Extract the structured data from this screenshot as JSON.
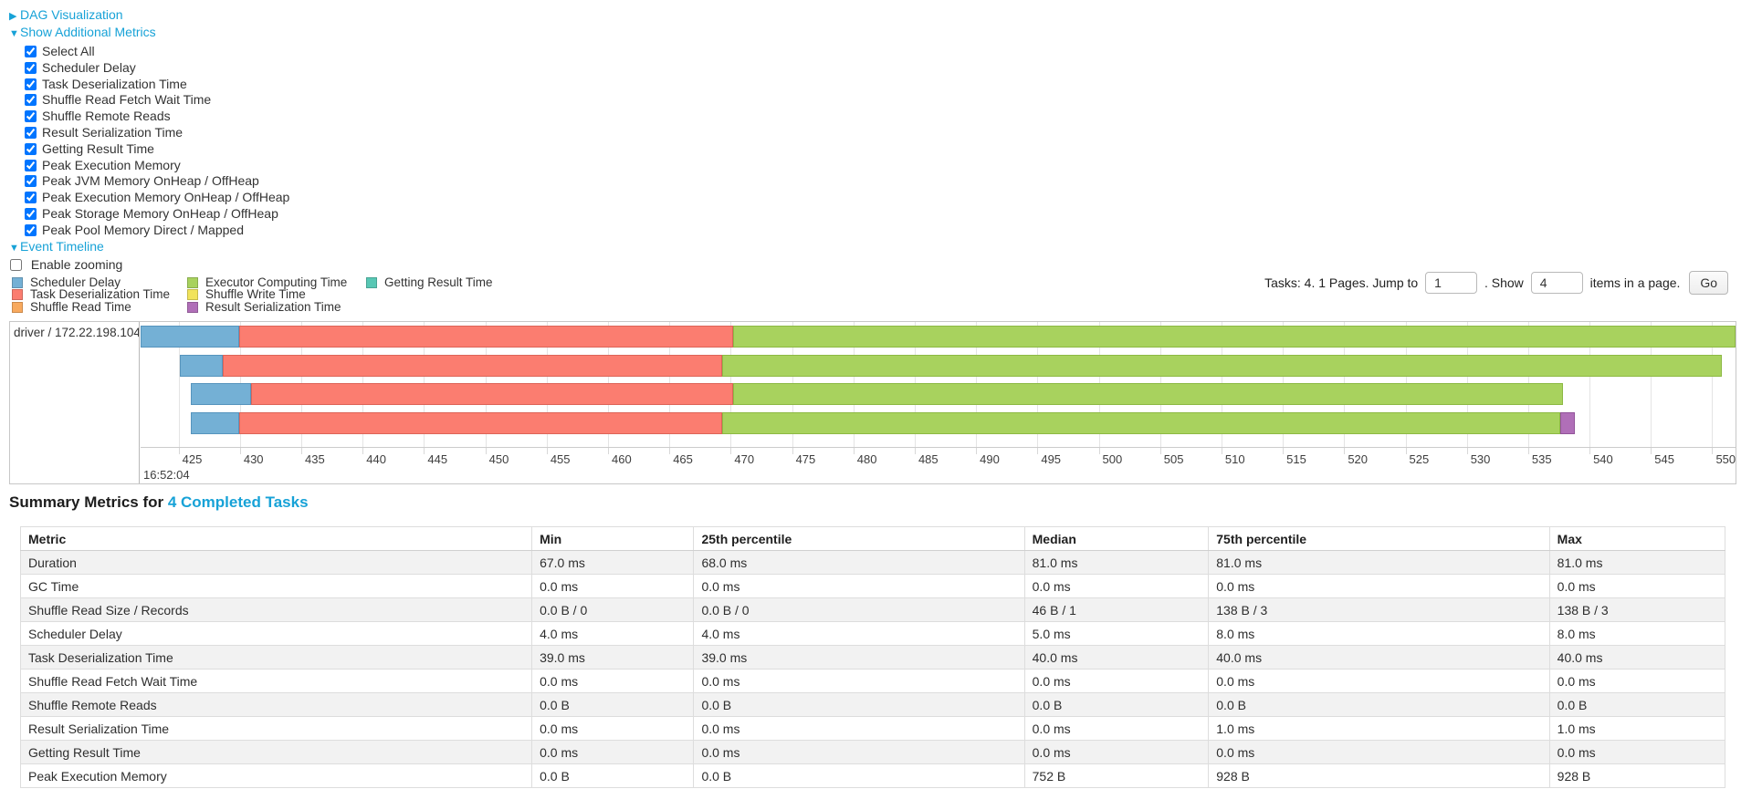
{
  "palette": {
    "link_color": "#17a2d7",
    "grid_color": "#e4e4e4",
    "series": {
      "scheduler_delay": {
        "label": "Scheduler Delay",
        "fill": "#74b0d5",
        "border": "#5694bd"
      },
      "task_deserialization_time": {
        "label": "Task Deserialization Time",
        "fill": "#fb7d70",
        "border": "#dd6458"
      },
      "shuffle_read_time": {
        "label": "Shuffle Read Time",
        "fill": "#f8a95e",
        "border": "#d98c43"
      },
      "executor_computing_time": {
        "label": "Executor Computing Time",
        "fill": "#a8d25e",
        "border": "#8db944"
      },
      "shuffle_write_time": {
        "label": "Shuffle Write Time",
        "fill": "#f1e35b",
        "border": "#d3c443"
      },
      "result_serialization_time": {
        "label": "Result Serialization Time",
        "fill": "#b06fb8",
        "border": "#92539a"
      },
      "getting_result_time": {
        "label": "Getting Result Time",
        "fill": "#58c7b4",
        "border": "#3fa894"
      }
    }
  },
  "controls": {
    "dag_toggle": {
      "arrow": "▶",
      "label": "DAG Visualization"
    },
    "metrics_toggle": {
      "arrow": "▼",
      "label": "Show Additional Metrics"
    },
    "additional_metrics": {
      "items": [
        "Select All",
        "Scheduler Delay",
        "Task Deserialization Time",
        "Shuffle Read Fetch Wait Time",
        "Shuffle Remote Reads",
        "Result Serialization Time",
        "Getting Result Time",
        "Peak Execution Memory",
        "Peak JVM Memory OnHeap / OffHeap",
        "Peak Execution Memory OnHeap / OffHeap",
        "Peak Storage Memory OnHeap / OffHeap",
        "Peak Pool Memory Direct / Mapped"
      ],
      "checked": true
    },
    "event_timeline_toggle": {
      "arrow": "▼",
      "label": "Event Timeline"
    },
    "enable_zooming": {
      "label": "Enable zooming",
      "checked": false
    }
  },
  "legend_keys": [
    "scheduler_delay",
    "task_deserialization_time",
    "shuffle_read_time",
    "executor_computing_time",
    "shuffle_write_time",
    "result_serialization_time",
    "getting_result_time"
  ],
  "pagination": {
    "tasks_text": "Tasks: 4. 1 Pages. Jump to",
    "jump_value": "1",
    "show_label": ". Show",
    "show_value": "4",
    "items_label": "items in a page.",
    "go_label": "Go"
  },
  "chart_data": {
    "type": "timeline",
    "group_label": "driver / 172.22.198.104",
    "axis_base_time": "16:52:04",
    "axis": {
      "min": 421.9,
      "max": 551.9
    },
    "axis_ticks": [
      425,
      430,
      435,
      440,
      445,
      450,
      455,
      460,
      465,
      470,
      475,
      480,
      485,
      490,
      495,
      500,
      505,
      510,
      515,
      520,
      525,
      530,
      535,
      540,
      545,
      550
    ],
    "rows": [
      {
        "task": 0,
        "segments": [
          {
            "name": "scheduler_delay",
            "start": 421.9,
            "end": 429.9
          },
          {
            "name": "task_deserialization_time",
            "start": 429.9,
            "end": 470.2
          },
          {
            "name": "executor_computing_time",
            "start": 470.2,
            "end": 552.0
          }
        ]
      },
      {
        "task": 1,
        "segments": [
          {
            "name": "scheduler_delay",
            "start": 425.1,
            "end": 428.6
          },
          {
            "name": "task_deserialization_time",
            "start": 428.6,
            "end": 469.3
          },
          {
            "name": "executor_computing_time",
            "start": 469.3,
            "end": 550.8
          }
        ]
      },
      {
        "task": 2,
        "segments": [
          {
            "name": "scheduler_delay",
            "start": 426.0,
            "end": 430.9
          },
          {
            "name": "task_deserialization_time",
            "start": 430.9,
            "end": 470.2
          },
          {
            "name": "executor_computing_time",
            "start": 470.2,
            "end": 537.8
          }
        ]
      },
      {
        "task": 3,
        "segments": [
          {
            "name": "scheduler_delay",
            "start": 426.0,
            "end": 429.9
          },
          {
            "name": "task_deserialization_time",
            "start": 429.9,
            "end": 469.3
          },
          {
            "name": "executor_computing_time",
            "start": 469.3,
            "end": 537.6
          },
          {
            "name": "result_serialization_time",
            "start": 537.6,
            "end": 538.8
          }
        ]
      }
    ]
  },
  "summary": {
    "title_prefix": "Summary Metrics for ",
    "title_link": "4 Completed Tasks",
    "columns": [
      "Metric",
      "Min",
      "25th percentile",
      "Median",
      "75th percentile",
      "Max"
    ],
    "col_widths": [
      "30.0%",
      "9.5%",
      "19.4%",
      "10.8%",
      "20.0%",
      "10.3%"
    ],
    "rows": [
      [
        "Duration",
        "67.0 ms",
        "68.0 ms",
        "81.0 ms",
        "81.0 ms",
        "81.0 ms"
      ],
      [
        "GC Time",
        "0.0 ms",
        "0.0 ms",
        "0.0 ms",
        "0.0 ms",
        "0.0 ms"
      ],
      [
        "Shuffle Read Size / Records",
        "0.0 B / 0",
        "0.0 B / 0",
        "46 B / 1",
        "138 B / 3",
        "138 B / 3"
      ],
      [
        "Scheduler Delay",
        "4.0 ms",
        "4.0 ms",
        "5.0 ms",
        "8.0 ms",
        "8.0 ms"
      ],
      [
        "Task Deserialization Time",
        "39.0 ms",
        "39.0 ms",
        "40.0 ms",
        "40.0 ms",
        "40.0 ms"
      ],
      [
        "Shuffle Read Fetch Wait Time",
        "0.0 ms",
        "0.0 ms",
        "0.0 ms",
        "0.0 ms",
        "0.0 ms"
      ],
      [
        "Shuffle Remote Reads",
        "0.0 B",
        "0.0 B",
        "0.0 B",
        "0.0 B",
        "0.0 B"
      ],
      [
        "Result Serialization Time",
        "0.0 ms",
        "0.0 ms",
        "0.0 ms",
        "1.0 ms",
        "1.0 ms"
      ],
      [
        "Getting Result Time",
        "0.0 ms",
        "0.0 ms",
        "0.0 ms",
        "0.0 ms",
        "0.0 ms"
      ],
      [
        "Peak Execution Memory",
        "0.0 B",
        "0.0 B",
        "752 B",
        "928 B",
        "928 B"
      ]
    ]
  }
}
